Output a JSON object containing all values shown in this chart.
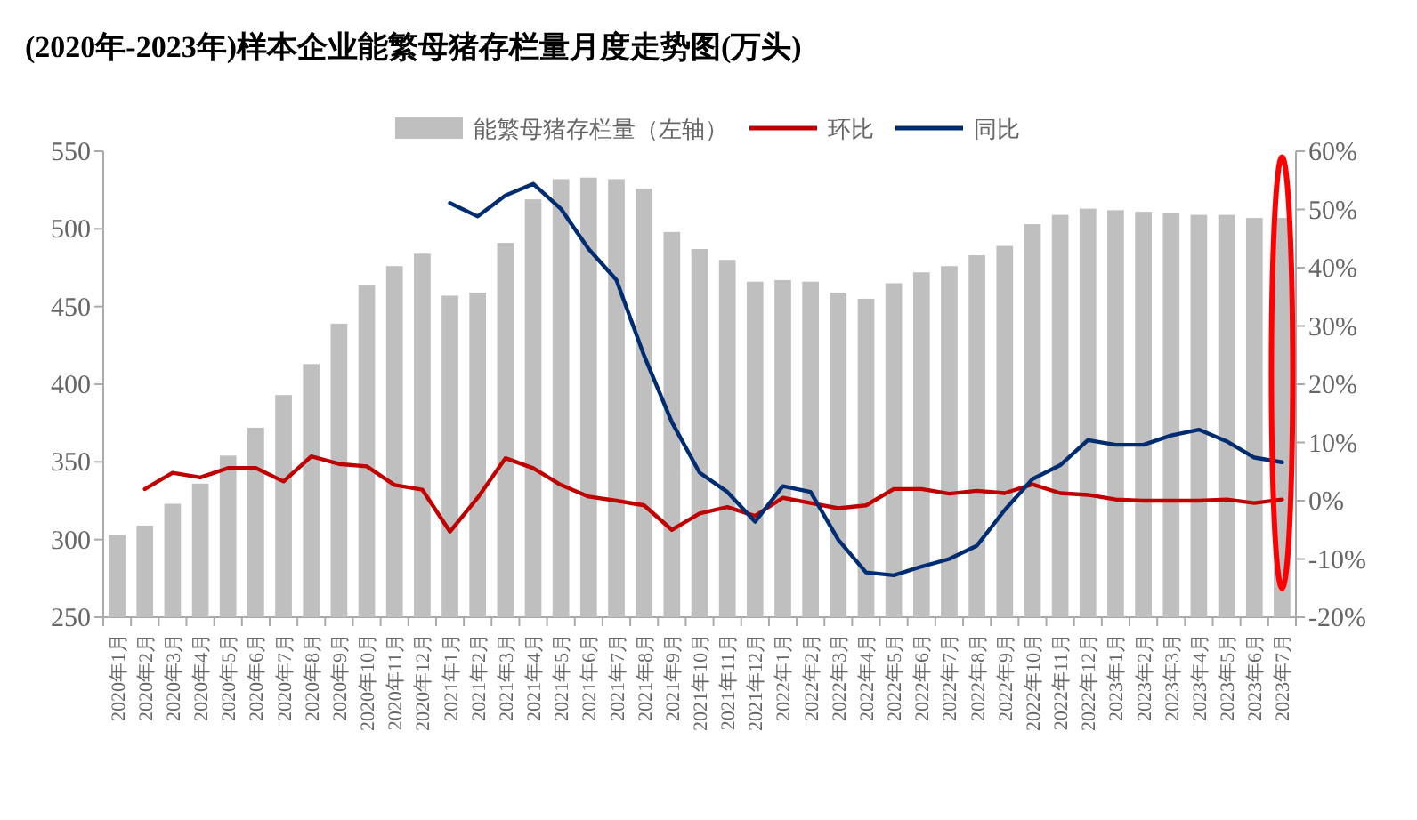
{
  "chart_data": {
    "type": "bar",
    "title": "(2020年-2023年)样本企业能繁母猪存栏量月度走势图(万头)",
    "legend": "top",
    "grid": false,
    "categories": [
      "2020年1月",
      "2020年2月",
      "2020年3月",
      "2020年4月",
      "2020年5月",
      "2020年6月",
      "2020年7月",
      "2020年8月",
      "2020年9月",
      "2020年10月",
      "2020年11月",
      "2020年12月",
      "2021年1月",
      "2021年2月",
      "2021年3月",
      "2021年4月",
      "2021年5月",
      "2021年6月",
      "2021年7月",
      "2021年8月",
      "2021年9月",
      "2021年10月",
      "2021年11月",
      "2021年12月",
      "2022年1月",
      "2022年2月",
      "2022年3月",
      "2022年4月",
      "2022年5月",
      "2022年6月",
      "2022年7月",
      "2022年8月",
      "2022年9月",
      "2022年10月",
      "2022年11月",
      "2022年12月",
      "2023年1月",
      "2023年2月",
      "2023年3月",
      "2023年4月",
      "2023年5月",
      "2023年6月",
      "2023年7月"
    ],
    "ylim": [
      250,
      550
    ],
    "yticks": [
      250,
      300,
      350,
      400,
      450,
      500,
      550
    ],
    "y2lim": [
      -20,
      60
    ],
    "y2ticks": [
      {
        "value": -20,
        "label": "-20%"
      },
      {
        "value": -10,
        "label": "-10%"
      },
      {
        "value": 0,
        "label": "0%"
      },
      {
        "value": 10,
        "label": "10%"
      },
      {
        "value": 20,
        "label": "20%"
      },
      {
        "value": 30,
        "label": "30%"
      },
      {
        "value": 40,
        "label": "40%"
      },
      {
        "value": 50,
        "label": "50%"
      },
      {
        "value": 60,
        "label": "60%"
      }
    ],
    "series": [
      {
        "name": "能繁母猪存栏量（左轴）",
        "color": "#bfbfbf",
        "values": [
          303,
          309,
          323,
          336,
          354,
          372,
          393,
          413,
          439,
          464,
          476,
          484,
          457,
          459,
          491,
          519,
          532,
          533,
          532,
          526,
          498,
          487,
          480,
          466,
          467,
          466,
          459,
          455,
          465,
          472,
          476,
          483,
          489,
          503,
          509,
          513,
          512,
          511,
          510,
          509,
          509,
          507,
          507
        ]
      },
      {
        "name": "环比",
        "type": "line",
        "axis": "y2",
        "color": "#c00000",
        "values": [
          null,
          2.0,
          4.8,
          4.0,
          5.6,
          5.6,
          3.3,
          7.6,
          6.3,
          5.9,
          2.7,
          1.9,
          -5.3,
          0.5,
          7.3,
          5.6,
          2.7,
          0.7,
          0.0,
          -0.8,
          -5.0,
          -2.2,
          -1.1,
          -2.6,
          0.5,
          -0.4,
          -1.3,
          -0.8,
          2.0,
          2.0,
          1.2,
          1.7,
          1.3,
          2.8,
          1.3,
          1.0,
          0.2,
          0.0,
          0.0,
          0.0,
          0.2,
          -0.4,
          0.2
        ]
      },
      {
        "name": "同比",
        "type": "line",
        "axis": "y2",
        "color": "#002d72",
        "values": [
          null,
          null,
          null,
          null,
          null,
          null,
          null,
          null,
          null,
          null,
          null,
          null,
          51.1,
          48.8,
          52.4,
          54.4,
          50.1,
          43.2,
          37.9,
          24.9,
          13.5,
          4.8,
          1.5,
          -3.6,
          2.5,
          1.5,
          -6.7,
          -12.3,
          -12.8,
          -11.3,
          -10.0,
          -7.7,
          -1.6,
          3.7,
          6.1,
          10.4,
          9.6,
          9.6,
          11.2,
          12.2,
          10.2,
          7.4,
          6.6
        ]
      }
    ]
  }
}
